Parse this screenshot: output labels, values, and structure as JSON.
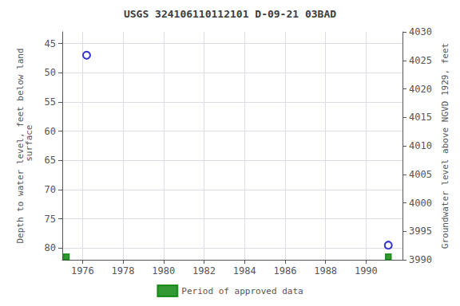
{
  "chart_data": {
    "type": "scatter",
    "title": "USGS 324106110112101 D-09-21 03BAD",
    "ylabel": "Depth to water level, feet below land\n surface",
    "y2label": "Groundwater level above NGVD 1929, feet",
    "xlim": [
      1975.0,
      1991.8
    ],
    "xticks": [
      1976,
      1978,
      1980,
      1982,
      1984,
      1986,
      1988,
      1990
    ],
    "ylim": [
      82,
      43
    ],
    "yticks": [
      45,
      50,
      55,
      60,
      65,
      70,
      75,
      80
    ],
    "y2lim": [
      3990,
      4030
    ],
    "y2ticks": [
      3990,
      3995,
      4000,
      4005,
      4010,
      4015,
      4020,
      4025,
      4030
    ],
    "grid": true,
    "legend": "bottom",
    "series": [
      {
        "x": [
          1976.2,
          1991.1
        ],
        "values": [
          47.0,
          79.5
        ],
        "color": "#0000cc",
        "marker": "circle"
      },
      {
        "name": "Period of approved data",
        "x": [
          1975.2,
          1991.1
        ],
        "values": [
          81.5,
          81.5
        ],
        "color": "#008000",
        "marker": "square"
      }
    ]
  }
}
